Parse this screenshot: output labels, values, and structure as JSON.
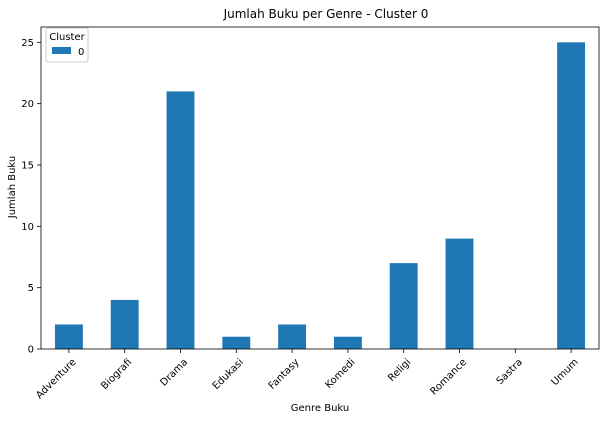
{
  "chart_data": {
    "type": "bar",
    "title": "Jumlah Buku per Genre - Cluster 0",
    "xlabel": "Genre Buku",
    "ylabel": "Jumlah Buku",
    "categories": [
      "Adventure",
      "Biografi",
      "Drama",
      "Edukasi",
      "Fantasy",
      "Komedi",
      "Religi",
      "Romance",
      "Sastra",
      "Umum"
    ],
    "series": [
      {
        "name": "0",
        "values": [
          2,
          4,
          21,
          1,
          2,
          1,
          7,
          9,
          0,
          25
        ],
        "color": "#1f77b4"
      }
    ],
    "yticks": [
      0,
      5,
      10,
      15,
      20,
      25
    ],
    "ylim": [
      0,
      26.25
    ],
    "grid": false,
    "legend": {
      "title": "Cluster",
      "placement": "top-left"
    },
    "xtick_rotation": 45
  }
}
